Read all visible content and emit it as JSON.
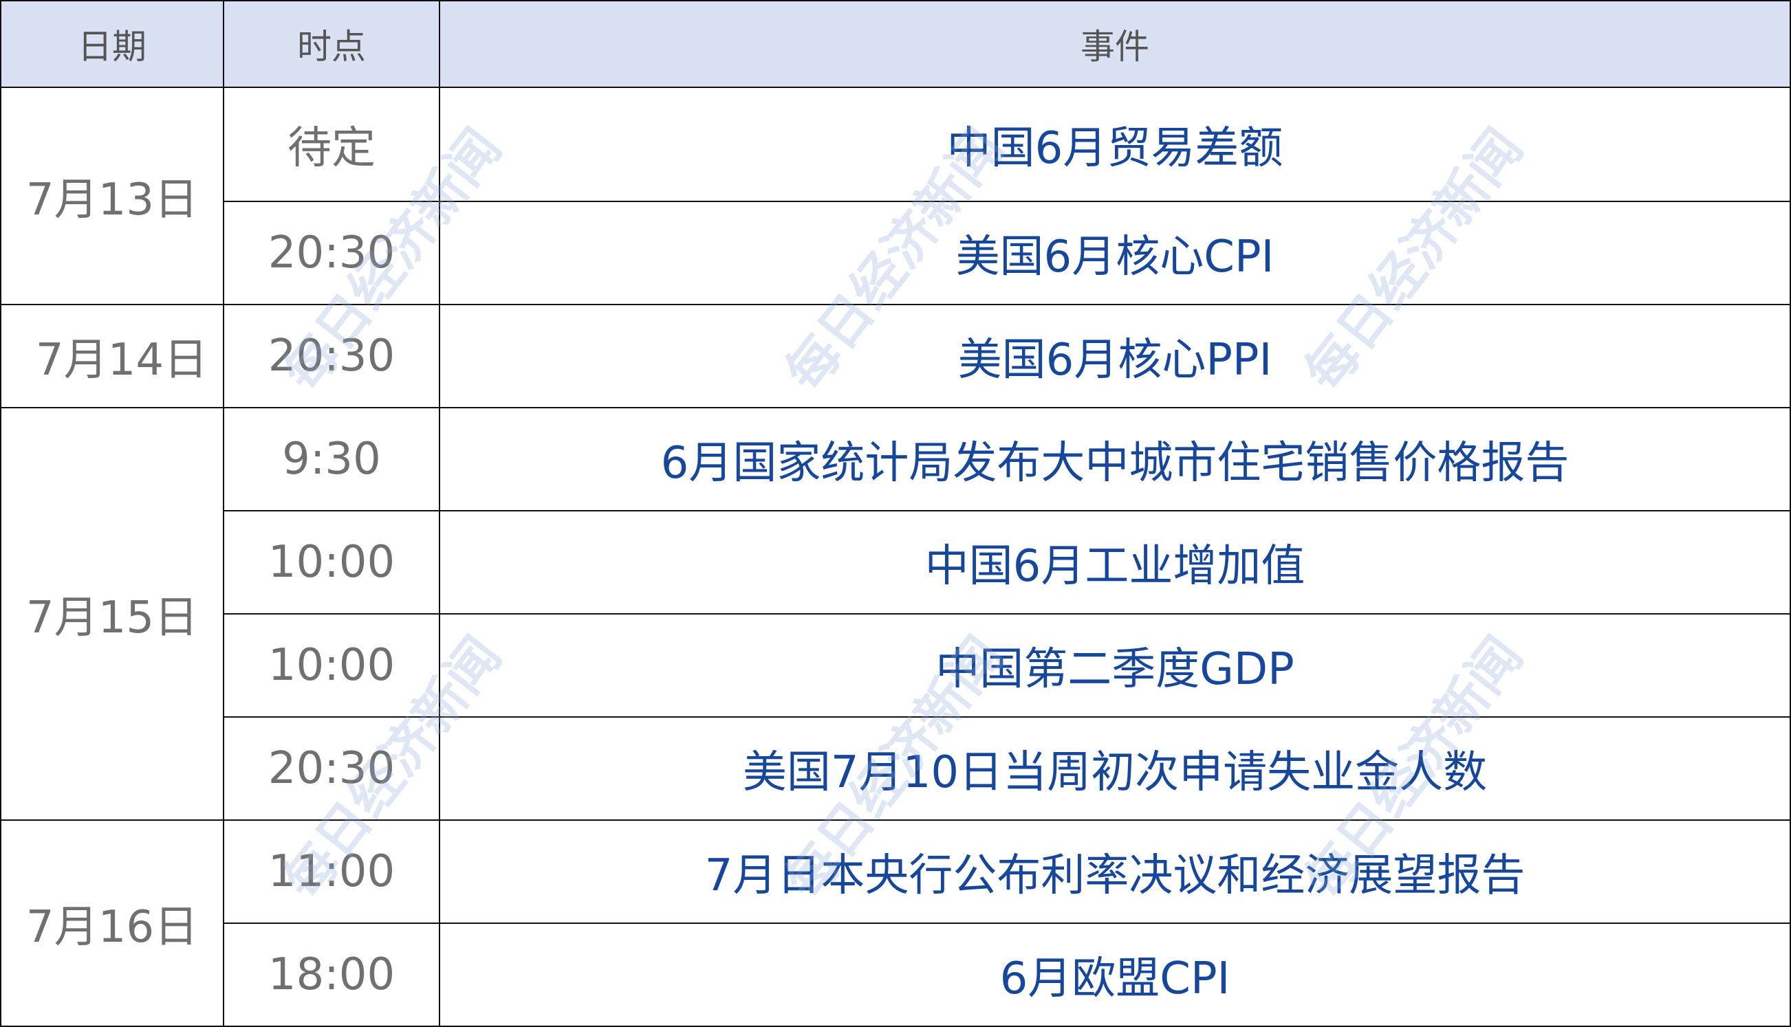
{
  "header": {
    "date": "日期",
    "time": "时点",
    "event": "事件"
  },
  "colors": {
    "header_bg": "#dae1f2",
    "event_text": "#17479a",
    "time_text": "#707070"
  },
  "groups": [
    {
      "date": "7月13日",
      "rows": [
        {
          "time": "待定",
          "event": "中国6月贸易差额"
        },
        {
          "time": "20:30",
          "event": "美国6月核心CPI"
        }
      ]
    },
    {
      "date": "7月14日",
      "rows": [
        {
          "time": "20:30",
          "event": "美国6月核心PPI"
        }
      ]
    },
    {
      "date": "7月15日",
      "rows": [
        {
          "time": "9:30",
          "event": "6月国家统计局发布大中城市住宅销售价格报告"
        },
        {
          "time": "10:00",
          "event": "中国6月工业增加值"
        },
        {
          "time": "10:00",
          "event": "中国第二季度GDP"
        },
        {
          "time": "20:30",
          "event": "美国7月10日当周初次申请失业金人数"
        }
      ]
    },
    {
      "date": "7月16日",
      "rows": [
        {
          "time": "11:00",
          "event": "7月日本央行公布利率决议和经济展望报告"
        },
        {
          "time": "18:00",
          "event": "6月欧盟CPI"
        }
      ]
    }
  ],
  "watermark": "每日经济新闻"
}
